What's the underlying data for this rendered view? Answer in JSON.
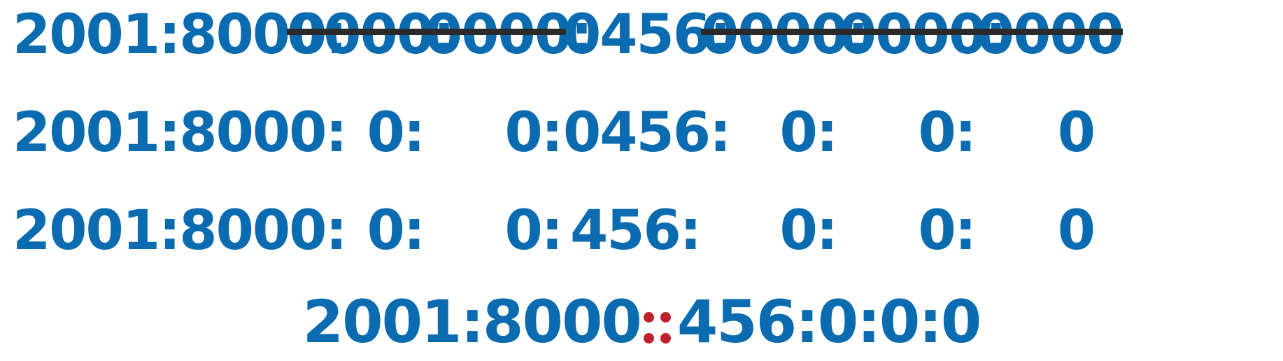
{
  "colors": {
    "primary": "#0a6bb0",
    "strike": "#2a2a2a",
    "highlight": "#c0202a"
  },
  "rows": [
    {
      "name": "full-address",
      "groups": [
        "2001",
        "8000",
        "0000",
        "0000",
        "0456",
        "0000",
        "0000",
        "0000"
      ],
      "struck": [
        false,
        false,
        true,
        true,
        false,
        true,
        true,
        true
      ]
    },
    {
      "name": "zero-groups-shortened",
      "groups": [
        "2001",
        "8000",
        "0",
        "0",
        "0456",
        "0",
        "0",
        "0"
      ],
      "struck": [
        false,
        false,
        false,
        false,
        false,
        false,
        false,
        false
      ]
    },
    {
      "name": "leading-zeros-removed",
      "groups": [
        "2001",
        "8000",
        "0",
        "0",
        "456",
        "0",
        "0",
        "0"
      ],
      "struck": [
        false,
        false,
        false,
        false,
        false,
        false,
        false,
        false
      ]
    }
  ],
  "compressed": {
    "before": "2001:8000",
    "separator": "::",
    "after": "456:0:0:0"
  }
}
